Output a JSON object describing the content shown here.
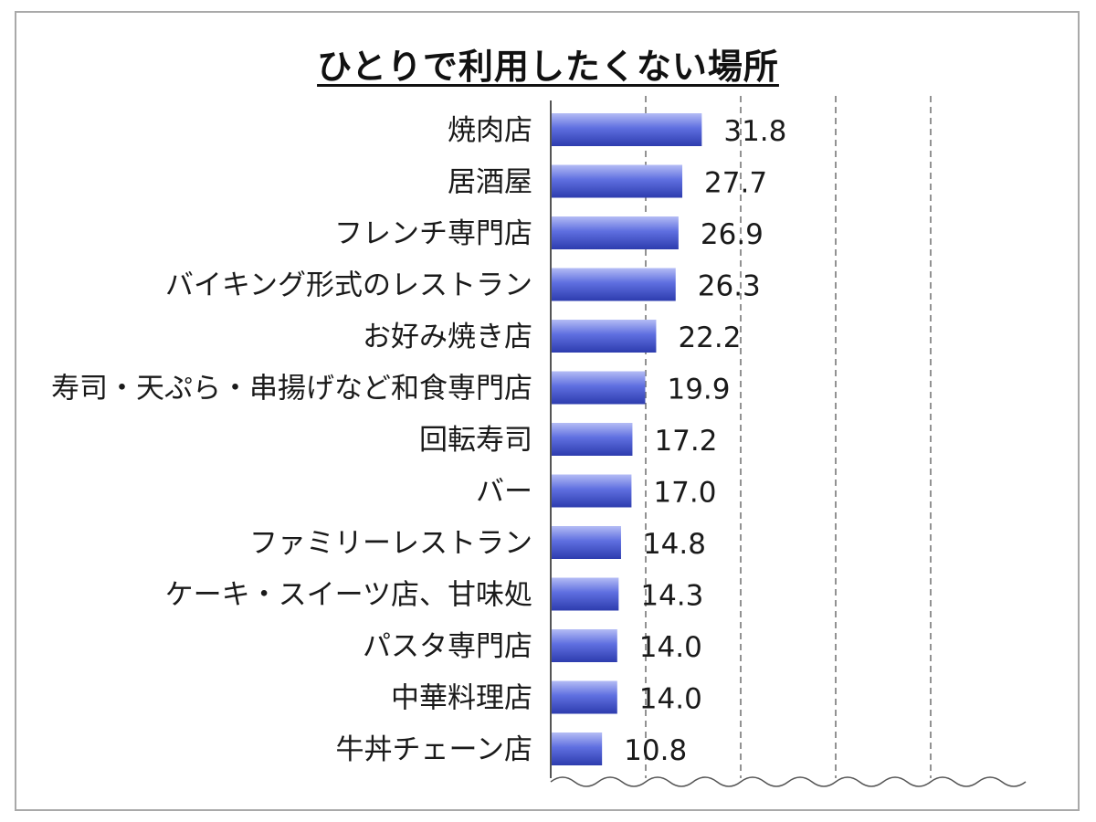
{
  "chart_data": {
    "type": "bar",
    "orientation": "horizontal",
    "title": "ひとりで利用したくない場所",
    "categories": [
      "焼肉店",
      "居酒屋",
      "フレンチ専門店",
      "バイキング形式のレストラン",
      "お好み焼き店",
      "寿司・天ぷら・串揚げなど和食専門店",
      "回転寿司",
      "バー",
      "ファミリーレストラン",
      "ケーキ・スイーツ店、甘味処",
      "パスタ専門店",
      "中華料理店",
      "牛丼チェーン店"
    ],
    "values": [
      31.8,
      27.7,
      26.9,
      26.3,
      22.2,
      19.9,
      17.2,
      17.0,
      14.8,
      14.3,
      14.0,
      14.0,
      10.8
    ],
    "value_labels": [
      "31.8",
      "27.7",
      "26.9",
      "26.3",
      "22.2",
      "19.9",
      "17.2",
      "17.0",
      "14.8",
      "14.3",
      "14.0",
      "14.0",
      "10.8"
    ],
    "xlim": [
      0,
      100
    ],
    "gridlines": [
      20,
      40,
      60,
      80
    ],
    "grid": true,
    "legend": "none",
    "xlabel": "",
    "ylabel": "",
    "colors": {
      "bar_light": "#b4bcf5",
      "bar_mid": "#5f6fe0",
      "bar_dark": "#2d3cae",
      "axis": "#555555",
      "grid": "#6f6f6f",
      "frame": "#a9a9a9"
    }
  }
}
